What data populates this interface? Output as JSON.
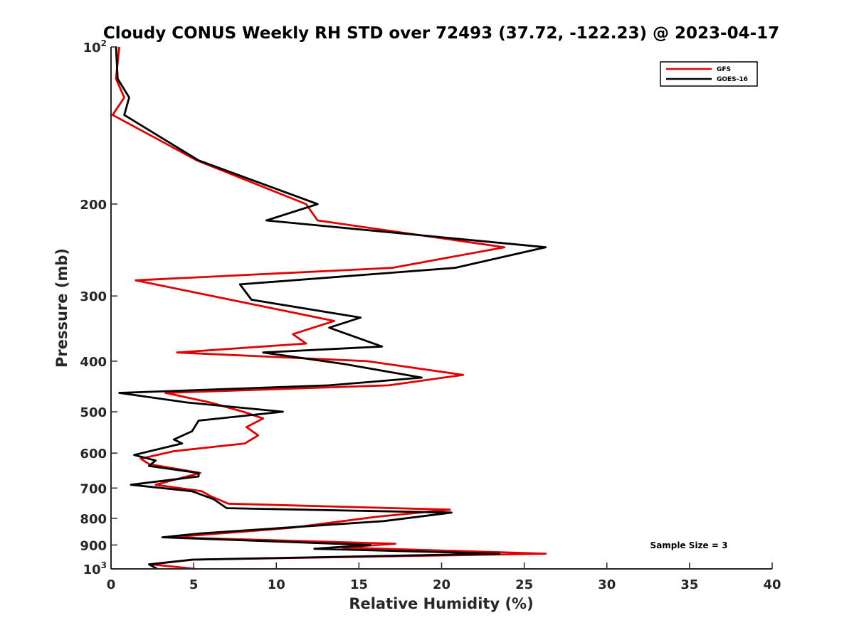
{
  "chart_data": {
    "type": "line",
    "title": "Cloudy CONUS Weekly RH STD over 72493 (37.72, -122.23) @ 2023-04-17",
    "xlabel": "Relative Humidity (%)",
    "ylabel": "Pressure (mb)",
    "xlim": [
      0,
      40
    ],
    "ylim": [
      100,
      1000
    ],
    "y_scale": "log",
    "y_reversed": true,
    "x_ticks": [
      "0",
      "5",
      "10",
      "15",
      "20",
      "25",
      "30",
      "35",
      "40"
    ],
    "y_ticks": [
      {
        "value": 100,
        "base": "10",
        "exp": "2"
      },
      {
        "value": 200,
        "label": "200"
      },
      {
        "value": 300,
        "label": "300"
      },
      {
        "value": 400,
        "label": "400"
      },
      {
        "value": 500,
        "label": "500"
      },
      {
        "value": 600,
        "label": "600"
      },
      {
        "value": 700,
        "label": "700"
      },
      {
        "value": 800,
        "label": "800"
      },
      {
        "value": 900,
        "label": "900"
      },
      {
        "value": 1000,
        "base": "10",
        "exp": "3"
      }
    ],
    "grid": false,
    "legend_position": "top-right",
    "annotation": "Sample Size = 3",
    "series": [
      {
        "name": "GFS",
        "color": "#e00000",
        "points": [
          [
            0.5,
            100
          ],
          [
            0.3,
            115
          ],
          [
            0.8,
            125
          ],
          [
            0.1,
            135
          ],
          [
            5.2,
            165
          ],
          [
            11.8,
            200
          ],
          [
            12.5,
            215
          ],
          [
            23.8,
            242
          ],
          [
            17,
            265
          ],
          [
            1.5,
            280
          ],
          [
            13.5,
            335
          ],
          [
            11,
            355
          ],
          [
            11.8,
            370
          ],
          [
            4,
            385
          ],
          [
            15.5,
            400
          ],
          [
            21.3,
            425
          ],
          [
            16.8,
            445
          ],
          [
            3.3,
            460
          ],
          [
            6,
            480
          ],
          [
            8,
            500
          ],
          [
            9.2,
            515
          ],
          [
            8.2,
            535
          ],
          [
            8.9,
            555
          ],
          [
            8.1,
            575
          ],
          [
            3.8,
            595
          ],
          [
            1.8,
            615
          ],
          [
            2.3,
            630
          ],
          [
            5.4,
            655
          ],
          [
            2.7,
            690
          ],
          [
            5.5,
            710
          ],
          [
            6,
            725
          ],
          [
            7.1,
            750
          ],
          [
            20.5,
            770
          ],
          [
            16,
            795
          ],
          [
            10.8,
            835
          ],
          [
            3.6,
            870
          ],
          [
            17.2,
            895
          ],
          [
            14,
            910
          ],
          [
            26.3,
            935
          ],
          [
            5,
            960
          ],
          [
            2.4,
            980
          ],
          [
            5.1,
            1000
          ]
        ]
      },
      {
        "name": "GOES-16",
        "color": "#000000",
        "points": [
          [
            0.3,
            100
          ],
          [
            0.4,
            115
          ],
          [
            1.1,
            125
          ],
          [
            0.8,
            135
          ],
          [
            5.3,
            165
          ],
          [
            12.5,
            200
          ],
          [
            9.4,
            215
          ],
          [
            26.3,
            242
          ],
          [
            20.8,
            265
          ],
          [
            7.8,
            285
          ],
          [
            8.5,
            305
          ],
          [
            15.1,
            330
          ],
          [
            13.2,
            345
          ],
          [
            16.4,
            375
          ],
          [
            9.2,
            385
          ],
          [
            14.1,
            405
          ],
          [
            18.8,
            430
          ],
          [
            13.2,
            445
          ],
          [
            0.5,
            460
          ],
          [
            4.6,
            480
          ],
          [
            10.4,
            500
          ],
          [
            5.3,
            520
          ],
          [
            4.9,
            545
          ],
          [
            3.8,
            565
          ],
          [
            4.3,
            575
          ],
          [
            1.4,
            605
          ],
          [
            2.7,
            620
          ],
          [
            2.3,
            635
          ],
          [
            5.3,
            655
          ],
          [
            5.3,
            665
          ],
          [
            1.2,
            690
          ],
          [
            4.9,
            710
          ],
          [
            6.2,
            735
          ],
          [
            7.0,
            765
          ],
          [
            20.6,
            780
          ],
          [
            16.5,
            810
          ],
          [
            5.4,
            855
          ],
          [
            3.1,
            870
          ],
          [
            15.7,
            900
          ],
          [
            12.3,
            915
          ],
          [
            23.5,
            935
          ],
          [
            4.9,
            960
          ],
          [
            2.3,
            980
          ],
          [
            2.8,
            1000
          ]
        ]
      }
    ]
  }
}
